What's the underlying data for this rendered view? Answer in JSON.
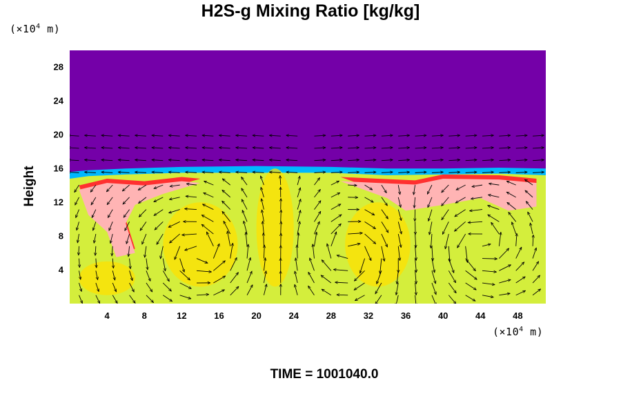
{
  "chart_data": {
    "type": "heatmap",
    "title": "H2S-g Mixing Ratio [kg/kg]",
    "ylabel": "Height",
    "x_unit": "(×10",
    "x_unit_exp": "4",
    "x_unit_tail": " m)",
    "y_unit": "(×10",
    "y_unit_exp": "4",
    "y_unit_tail": " m)",
    "xlim": [
      0,
      51
    ],
    "ylim": [
      0,
      30
    ],
    "x_ticks": [
      "4",
      "8",
      "12",
      "16",
      "20",
      "24",
      "28",
      "32",
      "36",
      "40",
      "44",
      "48"
    ],
    "y_ticks": [
      "4",
      "8",
      "12",
      "16",
      "20",
      "24",
      "28"
    ],
    "time_label": "TIME = 1001040.0",
    "overlay": "velocity vector arrows",
    "colors": {
      "background_field": "#7400a8",
      "boundary": "#00b8ff",
      "field_low": "#d4ee3c",
      "field_mid": "#ffe000",
      "field_high": "#ff3030",
      "field_max": "#ffb4b4"
    }
  }
}
